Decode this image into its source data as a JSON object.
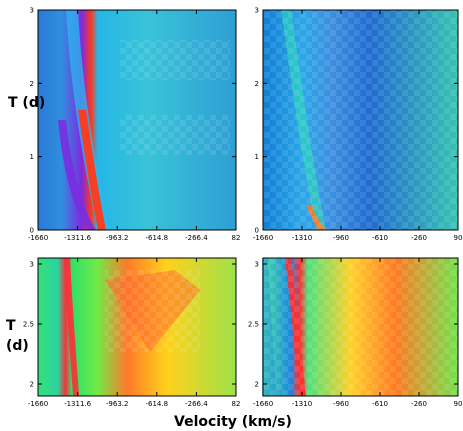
{
  "chart_data": [
    {
      "type": "heatmap",
      "panel": "top-left (model)",
      "xlim": [
        -1660,
        82
      ],
      "ylim": [
        0,
        3
      ],
      "xticks": [
        "-1660",
        "-1311.6",
        "-963.2",
        "-614.8",
        "-266.4",
        "82"
      ],
      "yticks": [
        "0",
        "1",
        "2",
        "3"
      ],
      "ylabel": "T (d)",
      "features": {
        "absorption_edge_kms": [
          -1450,
          -1250
        ],
        "emission_peak_kms": -1250
      }
    },
    {
      "type": "heatmap",
      "panel": "top-right (observed)",
      "xlim": [
        -1660,
        90
      ],
      "ylim": [
        0,
        3
      ],
      "xticks": [
        "-1660",
        "-1310",
        "-960",
        "-610",
        "-260",
        "90"
      ],
      "yticks": [
        "0",
        "1",
        "2",
        "3"
      ],
      "features": {
        "absorption_edge_kms": [
          -1450,
          -1150
        ],
        "emission_peak_kms": -1250
      }
    },
    {
      "type": "heatmap",
      "panel": "bottom-left (model)",
      "xlim": [
        -1660,
        82
      ],
      "ylim": [
        1.9,
        3.05
      ],
      "xticks": [
        "-1660",
        "-1311.6",
        "-963.2",
        "-614.8",
        "-266.4",
        "82"
      ],
      "yticks": [
        "2",
        "2.5",
        "3"
      ],
      "ylabel": "T (d)"
    },
    {
      "type": "heatmap",
      "panel": "bottom-right (observed)",
      "xlim": [
        -1660,
        90
      ],
      "ylim": [
        1.9,
        3.05
      ],
      "xticks": [
        "-1660",
        "-1310",
        "-960",
        "-610",
        "-260",
        "90"
      ],
      "yticks": [
        "2",
        "2.5",
        "3"
      ]
    }
  ],
  "xlabel": "Velocity (km/s)"
}
